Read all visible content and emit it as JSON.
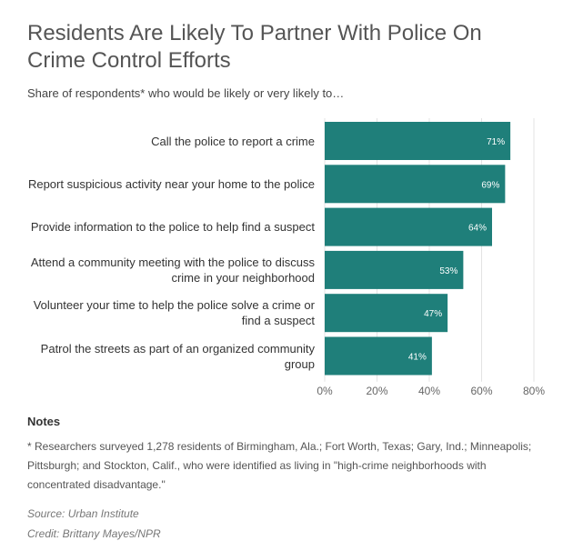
{
  "chart_data": {
    "type": "barh",
    "title": "Residents Are Likely To Partner With Police On Crime Control Efforts",
    "subtitle": "Share of respondents* who would be likely or very likely to…",
    "categories": [
      "Call the police to report a crime",
      "Report suspicious activity near your home to the police",
      "Provide information to the police to help find a suspect",
      "Attend a community meeting with the police to discuss crime in your neighborhood",
      "Volunteer your time to help the police solve a crime or find a suspect",
      "Patrol the streets as part of an organized community group"
    ],
    "values": [
      71,
      69,
      64,
      53,
      47,
      41
    ],
    "value_labels": [
      "71%",
      "69%",
      "64%",
      "53%",
      "47%",
      "41%"
    ],
    "color": "#1f7f7a",
    "xlim": [
      0,
      80
    ],
    "xticks": [
      {
        "value": 0,
        "label": "0%"
      },
      {
        "value": 20,
        "label": "20%"
      },
      {
        "value": 40,
        "label": "40%"
      },
      {
        "value": 60,
        "label": "60%"
      },
      {
        "value": 80,
        "label": "80%"
      }
    ],
    "grid": true
  },
  "notes": {
    "heading": "Notes",
    "text": "* Researchers surveyed 1,278 residents of Birmingham, Ala.; Fort Worth, Texas; Gary, Ind.; Minneapolis; Pittsburgh; and Stockton, Calif., who were identified as living in \"high-crime neighborhoods with concentrated disadvantage.\""
  },
  "source": "Source: Urban Institute",
  "credit": "Credit: Brittany Mayes/NPR"
}
